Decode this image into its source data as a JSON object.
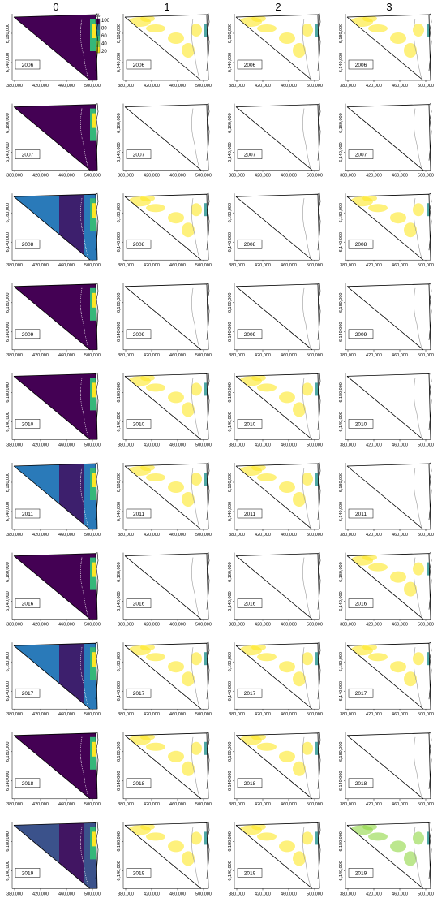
{
  "column_headers": [
    "0",
    "1",
    "2",
    "3"
  ],
  "years": [
    "2006",
    "2007",
    "2008",
    "2009",
    "2010",
    "2011",
    "2016",
    "2017",
    "2018",
    "2019"
  ],
  "x_ticks": [
    "380,000",
    "420,000",
    "460,000",
    "500,000"
  ],
  "y_ticks": [
    "6,140,000",
    "6,180,000"
  ],
  "legend": {
    "unit": "%",
    "ticks": [
      "100",
      "80",
      "60",
      "40",
      "20"
    ],
    "colors": [
      "#440154",
      "#31688e",
      "#21918c",
      "#35b779",
      "#90d743",
      "#fde725"
    ]
  },
  "colors": {
    "v100": "#440154",
    "v85": "#3b528b",
    "v70": "#2a7ab9",
    "v55": "#21918c",
    "v40": "#35b779",
    "v25": "#90d743",
    "v10": "#fde725"
  },
  "map_summary": [
    [
      "v100",
      "v10",
      "v10",
      "v10"
    ],
    [
      "v100",
      "none",
      "none",
      "none"
    ],
    [
      "v70",
      "v10",
      "none",
      "v10"
    ],
    [
      "v100",
      "none",
      "none",
      "none"
    ],
    [
      "v100",
      "v10",
      "v10",
      "none"
    ],
    [
      "v70",
      "v10",
      "v10",
      "none"
    ],
    [
      "v100",
      "none",
      "none",
      "v10"
    ],
    [
      "v70",
      "v10",
      "v10",
      "v10"
    ],
    [
      "v100",
      "v10",
      "v10",
      "none"
    ],
    [
      "v85",
      "v10",
      "v10",
      "v25"
    ]
  ]
}
